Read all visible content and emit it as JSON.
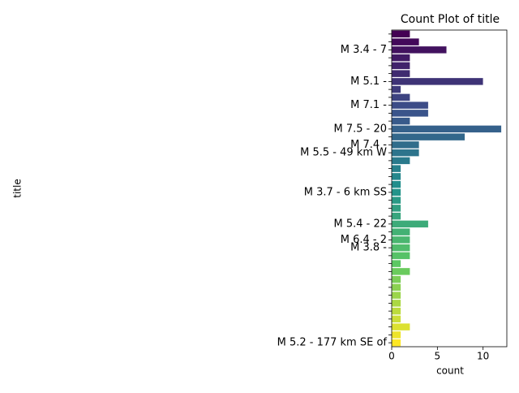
{
  "chart_data": {
    "type": "barh",
    "title": "Count Plot of title",
    "xlabel": "count",
    "ylabel": "title",
    "categories": [
      null,
      null,
      "M 3.4 - 7",
      null,
      null,
      null,
      "M 5.1 -",
      null,
      null,
      "M 7.1 -",
      null,
      null,
      "M 7.5 - 20",
      null,
      "M 7.4 -",
      "M 5.5 - 49 km W",
      null,
      null,
      null,
      null,
      "M 3.7 - 6 km SS",
      null,
      null,
      null,
      "M 5.4 - 22",
      null,
      "M 6.4 - 2",
      "M 3.8 -",
      null,
      null,
      null,
      null,
      null,
      null,
      null,
      null,
      null,
      null,
      null,
      "M 5.2 - 177 km SE of"
    ],
    "values": [
      2,
      3,
      6,
      2,
      2,
      2,
      10,
      1,
      2,
      4,
      4,
      2,
      12,
      8,
      3,
      3,
      2,
      1,
      1,
      1,
      1,
      1,
      1,
      1,
      4,
      2,
      2,
      2,
      2,
      1,
      2,
      1,
      1,
      1,
      1,
      1,
      1,
      2,
      1,
      1
    ],
    "palette": [
      "#440154",
      "#3b528b",
      "#21918c",
      "#5ec962",
      "#fde725"
    ],
    "xlim": [
      0,
      12.6
    ],
    "xticks": [
      0,
      5,
      10
    ]
  }
}
